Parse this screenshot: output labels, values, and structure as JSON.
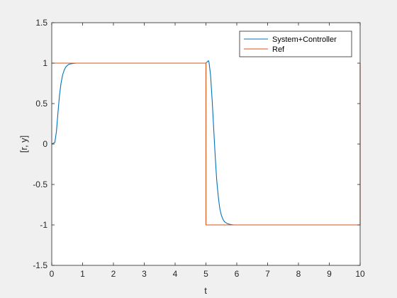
{
  "chart_data": {
    "type": "line",
    "title": "",
    "xlabel": "t",
    "ylabel": "[r, y]",
    "xlim": [
      0,
      10
    ],
    "ylim": [
      -1.5,
      1.5
    ],
    "xticks": [
      0,
      1,
      2,
      3,
      4,
      5,
      6,
      7,
      8,
      9,
      10
    ],
    "yticks": [
      -1.5,
      -1,
      -0.5,
      0,
      0.5,
      1,
      1.5
    ],
    "xtick_labels": [
      "0",
      "1",
      "2",
      "3",
      "4",
      "5",
      "6",
      "7",
      "8",
      "9",
      "10"
    ],
    "ytick_labels": [
      "-1.5",
      "-1",
      "-0.5",
      "0",
      "0.5",
      "1",
      "1.5"
    ],
    "grid": false,
    "legend_position": "top-right",
    "series": [
      {
        "name": "System+Controller",
        "color": "#0072BD",
        "x": [
          0,
          0.1,
          0.15,
          0.2,
          0.25,
          0.3,
          0.35,
          0.4,
          0.45,
          0.5,
          0.55,
          0.6,
          0.7,
          0.8,
          0.9,
          1.0,
          1.5,
          2,
          3,
          4,
          5,
          5.05,
          5.08,
          5.1,
          5.15,
          5.2,
          5.25,
          5.3,
          5.35,
          5.4,
          5.45,
          5.5,
          5.55,
          5.6,
          5.7,
          5.8,
          5.9,
          6.0,
          6.5,
          7,
          8,
          9,
          10
        ],
        "y": [
          0,
          0.02,
          0.15,
          0.38,
          0.6,
          0.75,
          0.85,
          0.91,
          0.95,
          0.97,
          0.985,
          0.99,
          0.997,
          1.0,
          1.0,
          1.0,
          1.0,
          1.0,
          1.0,
          1.0,
          1.0,
          1.02,
          1.03,
          1.01,
          0.85,
          0.55,
          0.2,
          -0.15,
          -0.45,
          -0.65,
          -0.8,
          -0.88,
          -0.93,
          -0.96,
          -0.985,
          -0.995,
          -1.0,
          -1.0,
          -1.0,
          -1.0,
          -1.0,
          -1.0,
          -1.0
        ]
      },
      {
        "name": "Ref",
        "color": "#D95319",
        "x": [
          0,
          5,
          5,
          10,
          10
        ],
        "y": [
          1,
          1,
          -1,
          -1,
          1
        ]
      }
    ]
  }
}
